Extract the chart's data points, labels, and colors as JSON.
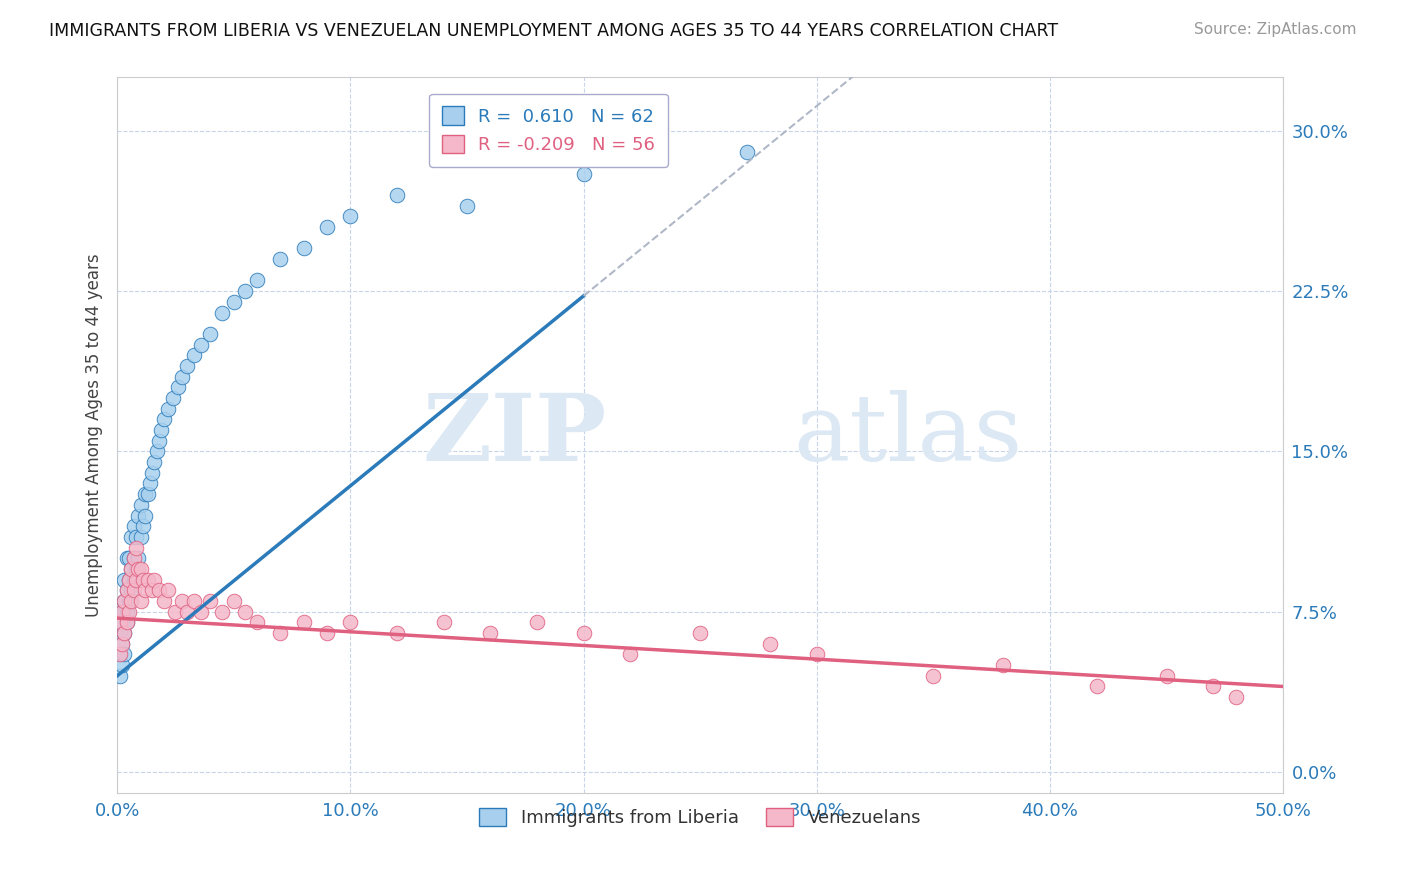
{
  "title": "IMMIGRANTS FROM LIBERIA VS VENEZUELAN UNEMPLOYMENT AMONG AGES 35 TO 44 YEARS CORRELATION CHART",
  "source": "Source: ZipAtlas.com",
  "ylabel": "Unemployment Among Ages 35 to 44 years",
  "xlim": [
    0.0,
    0.5
  ],
  "ylim": [
    -0.01,
    0.325
  ],
  "xticks": [
    0.0,
    0.1,
    0.2,
    0.3,
    0.4,
    0.5
  ],
  "yticks": [
    0.0,
    0.075,
    0.15,
    0.225,
    0.3
  ],
  "xticklabels": [
    "0.0%",
    "10.0%",
    "20.0%",
    "30.0%",
    "40.0%",
    "50.0%"
  ],
  "yticklabels": [
    "0.0%",
    "7.5%",
    "15.0%",
    "22.5%",
    "30.0%"
  ],
  "blue_R": "0.610",
  "blue_N": "62",
  "pink_R": "-0.209",
  "pink_N": "56",
  "blue_color": "#a8d0ee",
  "pink_color": "#f4b8ca",
  "blue_line_color": "#2b7bba",
  "pink_line_color": "#e06080",
  "dashed_line_color": "#b0b8c8",
  "watermark_zip": "ZIP",
  "watermark_atlas": "atlas",
  "background_color": "#ffffff",
  "blue_scatter_x": [
    0.001,
    0.001,
    0.001,
    0.002,
    0.002,
    0.002,
    0.002,
    0.003,
    0.003,
    0.003,
    0.003,
    0.003,
    0.004,
    0.004,
    0.004,
    0.004,
    0.005,
    0.005,
    0.005,
    0.006,
    0.006,
    0.006,
    0.007,
    0.007,
    0.007,
    0.008,
    0.008,
    0.009,
    0.009,
    0.01,
    0.01,
    0.011,
    0.012,
    0.012,
    0.013,
    0.014,
    0.015,
    0.016,
    0.017,
    0.018,
    0.019,
    0.02,
    0.022,
    0.024,
    0.026,
    0.028,
    0.03,
    0.033,
    0.036,
    0.04,
    0.045,
    0.05,
    0.055,
    0.06,
    0.07,
    0.08,
    0.09,
    0.1,
    0.12,
    0.15,
    0.2,
    0.27
  ],
  "blue_scatter_y": [
    0.045,
    0.055,
    0.065,
    0.05,
    0.06,
    0.07,
    0.075,
    0.055,
    0.065,
    0.075,
    0.08,
    0.09,
    0.07,
    0.075,
    0.085,
    0.1,
    0.08,
    0.09,
    0.1,
    0.085,
    0.095,
    0.11,
    0.09,
    0.1,
    0.115,
    0.095,
    0.11,
    0.1,
    0.12,
    0.11,
    0.125,
    0.115,
    0.12,
    0.13,
    0.13,
    0.135,
    0.14,
    0.145,
    0.15,
    0.155,
    0.16,
    0.165,
    0.17,
    0.175,
    0.18,
    0.185,
    0.19,
    0.195,
    0.2,
    0.205,
    0.215,
    0.22,
    0.225,
    0.23,
    0.24,
    0.245,
    0.255,
    0.26,
    0.27,
    0.265,
    0.28,
    0.29
  ],
  "pink_scatter_x": [
    0.001,
    0.001,
    0.002,
    0.002,
    0.003,
    0.003,
    0.004,
    0.004,
    0.005,
    0.005,
    0.006,
    0.006,
    0.007,
    0.007,
    0.008,
    0.008,
    0.009,
    0.01,
    0.01,
    0.011,
    0.012,
    0.013,
    0.015,
    0.016,
    0.018,
    0.02,
    0.022,
    0.025,
    0.028,
    0.03,
    0.033,
    0.036,
    0.04,
    0.045,
    0.05,
    0.055,
    0.06,
    0.07,
    0.08,
    0.09,
    0.1,
    0.12,
    0.14,
    0.16,
    0.18,
    0.2,
    0.22,
    0.25,
    0.28,
    0.3,
    0.35,
    0.38,
    0.42,
    0.45,
    0.47,
    0.48
  ],
  "pink_scatter_y": [
    0.055,
    0.07,
    0.06,
    0.075,
    0.065,
    0.08,
    0.07,
    0.085,
    0.075,
    0.09,
    0.08,
    0.095,
    0.085,
    0.1,
    0.09,
    0.105,
    0.095,
    0.08,
    0.095,
    0.09,
    0.085,
    0.09,
    0.085,
    0.09,
    0.085,
    0.08,
    0.085,
    0.075,
    0.08,
    0.075,
    0.08,
    0.075,
    0.08,
    0.075,
    0.08,
    0.075,
    0.07,
    0.065,
    0.07,
    0.065,
    0.07,
    0.065,
    0.07,
    0.065,
    0.07,
    0.065,
    0.055,
    0.065,
    0.06,
    0.055,
    0.045,
    0.05,
    0.04,
    0.045,
    0.04,
    0.035
  ]
}
